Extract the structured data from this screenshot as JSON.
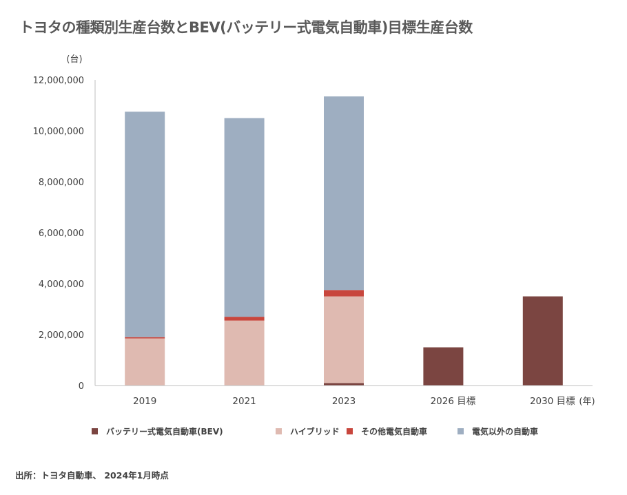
{
  "title": "トヨタの種類別生産台数とBEV(バッテリー式電気自動車)目標生産台数",
  "source": "出所：トヨタ自動車、 2024年1月時点",
  "chart_data": {
    "type": "bar",
    "stacked": true,
    "title": "トヨタの種類別生産台数とBEV(バッテリー式電気自動車)目標生産台数",
    "y_unit": "(台)",
    "x_unit": "(年)",
    "categories": [
      "2019",
      "2021",
      "2023",
      "2026 目標",
      "2030 目標"
    ],
    "ylim": [
      0,
      12000000
    ],
    "yticks": [
      0,
      2000000,
      4000000,
      6000000,
      8000000,
      10000000,
      12000000
    ],
    "ytick_labels": [
      "0",
      "2,000,000",
      "4,000,000",
      "6,000,000",
      "8,000,000",
      "10,000,000",
      "12,000,000"
    ],
    "grid": false,
    "legend_position": "bottom",
    "series": [
      {
        "name": "バッテリー式電気自動車(BEV)",
        "color": "#7b4541",
        "values": [
          0,
          0,
          100000,
          1500000,
          3500000
        ]
      },
      {
        "name": "ハイブリッド",
        "color": "#dfbab1",
        "values": [
          1850000,
          2550000,
          3400000,
          0,
          0
        ]
      },
      {
        "name": "その他電気自動車",
        "color": "#c8463d",
        "values": [
          50000,
          150000,
          250000,
          0,
          0
        ]
      },
      {
        "name": "電気以外の自動車",
        "color": "#9eaec1",
        "values": [
          8850000,
          7800000,
          7600000,
          0,
          0
        ]
      }
    ]
  }
}
